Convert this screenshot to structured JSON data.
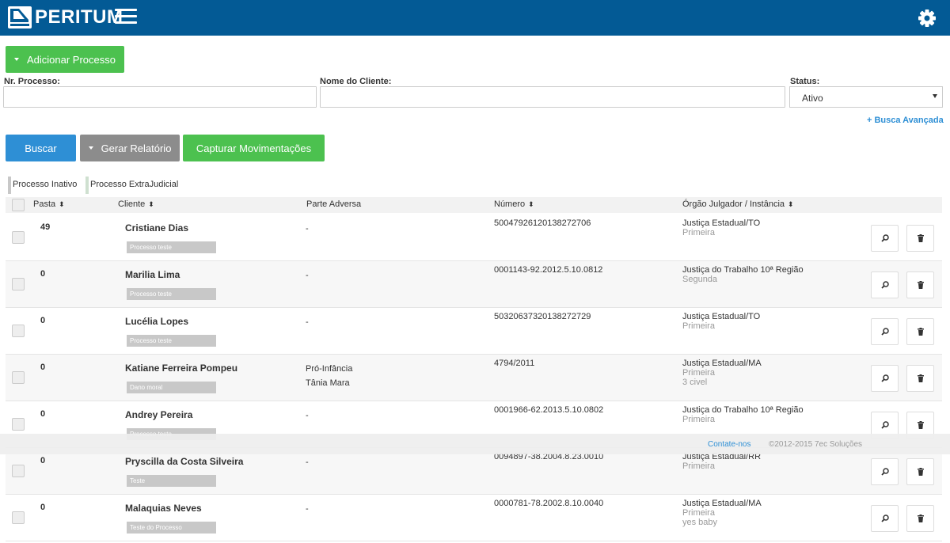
{
  "header": {
    "brand": "PERITUM"
  },
  "actions": {
    "add_process": "Adicionar Processo",
    "search": "Buscar",
    "report": "Gerar Relatório",
    "capture": "Capturar Movimentações"
  },
  "filters": {
    "process_number_label": "Nr. Processo:",
    "client_name_label": "Nome do Cliente:",
    "status_label": "Status:",
    "status_value": "Ativo",
    "advanced_search": "+ Busca Avançada"
  },
  "legend": {
    "inactive": "Processo Inativo",
    "extrajudicial": "Processo ExtraJudicial"
  },
  "columns": {
    "pasta": "Pasta",
    "cliente": "Cliente",
    "parte_adversa": "Parte Adversa",
    "numero": "Número",
    "orgao": "Órgão Julgador / Instância"
  },
  "rows": [
    {
      "pasta": "49",
      "cliente": "Cristiane Dias",
      "tag": "Processo teste",
      "adversa1": "-",
      "adversa2": "",
      "numero": "50047926120138272706",
      "orgao": "Justiça Estadual/TO",
      "inst": "Primeira",
      "extra": ""
    },
    {
      "pasta": "0",
      "cliente": "Marilia Lima",
      "tag": "Processo teste",
      "adversa1": "-",
      "adversa2": "",
      "numero": "0001143-92.2012.5.10.0812",
      "orgao": "Justiça do Trabalho 10ª Região",
      "inst": "Segunda",
      "extra": ""
    },
    {
      "pasta": "0",
      "cliente": "Lucélia Lopes",
      "tag": "Processo teste",
      "adversa1": "-",
      "adversa2": "",
      "numero": "50320637320138272729",
      "orgao": "Justiça Estadual/TO",
      "inst": "Primeira",
      "extra": ""
    },
    {
      "pasta": "0",
      "cliente": "Katiane Ferreira Pompeu",
      "tag": "Dano moral",
      "adversa1": "Pró-Infância",
      "adversa2": "Tânia Mara",
      "numero": "4794/2011",
      "orgao": "Justiça Estadual/MA",
      "inst": "Primeira",
      "extra": "3 civel"
    },
    {
      "pasta": "0",
      "cliente": "Andrey Pereira",
      "tag": "Processo teste",
      "adversa1": "-",
      "adversa2": "",
      "numero": "0001966-62.2013.5.10.0802",
      "orgao": "Justiça do Trabalho 10ª Região",
      "inst": "Primeira",
      "extra": ""
    },
    {
      "pasta": "0",
      "cliente": "Pryscilla da Costa Silveira",
      "tag": "Teste",
      "adversa1": "-",
      "adversa2": "",
      "numero": "0094897-38.2004.8.23.0010",
      "orgao": "Justiça Estadual/RR",
      "inst": "Primeira",
      "extra": ""
    },
    {
      "pasta": "0",
      "cliente": "Malaquias Neves",
      "tag": "Teste do Processo",
      "adversa1": "-",
      "adversa2": "",
      "numero": "0000781-78.2002.8.10.0040",
      "orgao": "Justiça Estadual/MA",
      "inst": "Primeira",
      "extra": "yes baby"
    }
  ],
  "footer": {
    "contact": "Contate-nos",
    "copyright": "©2012-2015 7ec Soluções"
  },
  "icons": {
    "menu": "hamburger-icon",
    "settings": "gear-icon",
    "view": "search-icon",
    "delete": "trash-icon"
  },
  "colors": {
    "topbar": "#035a95",
    "green": "#4cc14f",
    "blue": "#2e8fd5",
    "gray": "#8c8c8c"
  }
}
